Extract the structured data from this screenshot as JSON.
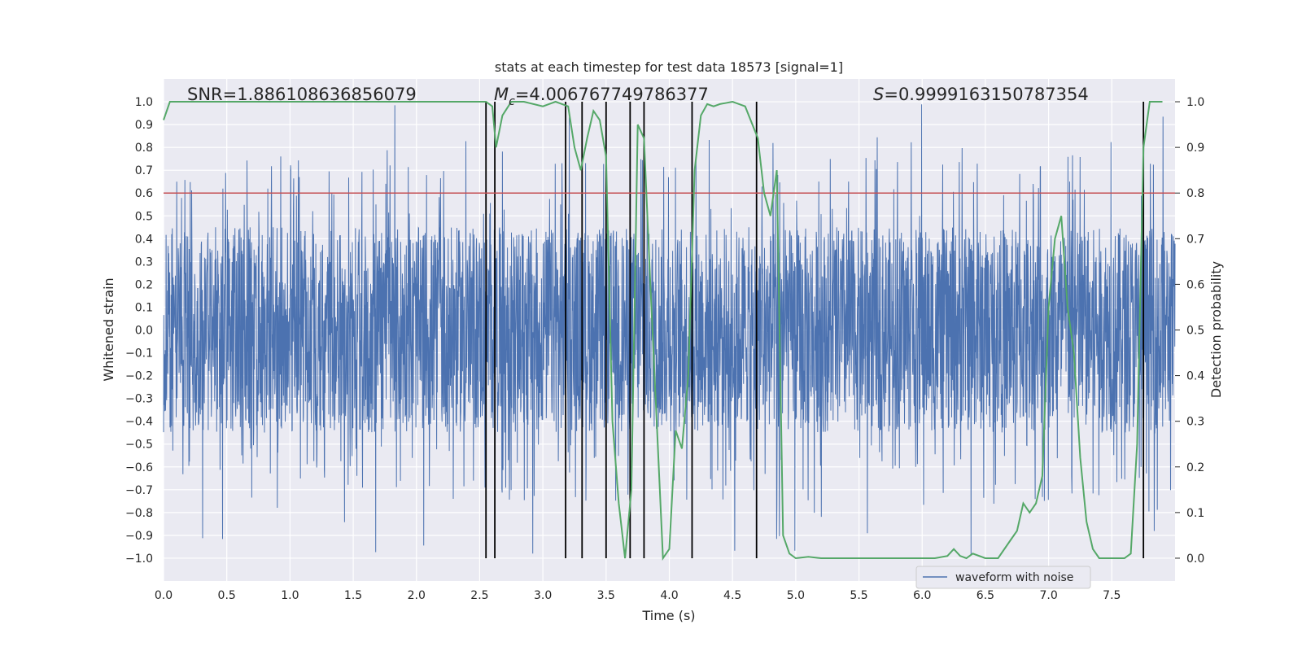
{
  "chart_data": {
    "type": "line",
    "title": "stats at each timestep for test data 18573 [signal=1]",
    "xlabel": "Time (s)",
    "ylabel": "Whitened strain",
    "y2label": "Detection probability",
    "xlim": [
      0.0,
      8.0
    ],
    "ylim": [
      -1.1,
      1.1
    ],
    "y2lim": [
      -0.05,
      1.05
    ],
    "xticks": [
      "0.0",
      "0.5",
      "1.0",
      "1.5",
      "2.0",
      "2.5",
      "3.0",
      "3.5",
      "4.0",
      "4.5",
      "5.0",
      "5.5",
      "6.0",
      "6.5",
      "7.0",
      "7.5"
    ],
    "yticks": [
      "1.0",
      "0.9",
      "0.8",
      "0.7",
      "0.6",
      "0.5",
      "0.4",
      "0.3",
      "0.2",
      "0.1",
      "0.0",
      "−0.1",
      "−0.2",
      "−0.3",
      "−0.4",
      "−0.5",
      "−0.6",
      "−0.7",
      "−0.8",
      "−0.9",
      "−1.0"
    ],
    "y2ticks": [
      "1.0",
      "0.9",
      "0.8",
      "0.7",
      "0.6",
      "0.5",
      "0.4",
      "0.3",
      "0.2",
      "0.1",
      "0.0"
    ],
    "grid": true,
    "legend_position": "lower-right",
    "annotations": {
      "snr": "SNR=1.886108636856079",
      "mc_prefix": "M",
      "mc_sub": "c",
      "mc_value": "=4.006767749786377",
      "s_prefix": "S",
      "s_value": "=0.9999163150787354"
    },
    "series": [
      {
        "name": "waveform with noise",
        "kind": "noise-waveform",
        "color": "#4c72b0",
        "core_amplitude": 0.45,
        "peak_amplitude_max": 1.0,
        "note_values": "dense whitened strain samples spanning roughly -1.0 to 1.0"
      },
      {
        "kind": "probability",
        "axis": "y2",
        "color": "#55a868",
        "x": [
          0.0,
          0.05,
          0.1,
          0.2,
          0.5,
          1.0,
          1.5,
          2.0,
          2.5,
          2.55,
          2.6,
          2.63,
          2.68,
          2.75,
          2.85,
          3.0,
          3.1,
          3.2,
          3.25,
          3.3,
          3.35,
          3.4,
          3.45,
          3.5,
          3.55,
          3.6,
          3.65,
          3.7,
          3.75,
          3.8,
          3.85,
          3.9,
          3.95,
          4.0,
          4.05,
          4.1,
          4.15,
          4.2,
          4.25,
          4.3,
          4.35,
          4.4,
          4.5,
          4.6,
          4.7,
          4.75,
          4.8,
          4.85,
          4.9,
          4.95,
          5.0,
          5.1,
          5.2,
          5.3,
          5.5,
          5.7,
          5.9,
          6.1,
          6.2,
          6.25,
          6.3,
          6.35,
          6.4,
          6.5,
          6.6,
          6.7,
          6.75,
          6.8,
          6.85,
          6.9,
          6.95,
          7.0,
          7.05,
          7.1,
          7.15,
          7.2,
          7.25,
          7.3,
          7.35,
          7.4,
          7.45,
          7.5,
          7.6,
          7.65,
          7.7,
          7.75,
          7.8,
          7.85,
          7.9
        ],
        "y": [
          0.96,
          1.0,
          1.0,
          1.0,
          1.0,
          1.0,
          1.0,
          1.0,
          1.0,
          1.0,
          0.99,
          0.9,
          0.97,
          1.0,
          1.0,
          0.99,
          1.0,
          0.99,
          0.9,
          0.85,
          0.92,
          0.98,
          0.96,
          0.88,
          0.3,
          0.12,
          0.0,
          0.15,
          0.95,
          0.92,
          0.6,
          0.3,
          0.0,
          0.02,
          0.28,
          0.24,
          0.4,
          0.85,
          0.97,
          0.995,
          0.99,
          0.995,
          1.0,
          0.99,
          0.92,
          0.8,
          0.75,
          0.85,
          0.05,
          0.01,
          0.0,
          0.003,
          0.0,
          0.0,
          0.0,
          0.0,
          0.0,
          0.0,
          0.005,
          0.02,
          0.005,
          0.0,
          0.01,
          0.0,
          0.0,
          0.04,
          0.06,
          0.12,
          0.1,
          0.12,
          0.18,
          0.55,
          0.7,
          0.75,
          0.55,
          0.45,
          0.22,
          0.08,
          0.02,
          0.0,
          0.0,
          0.0,
          0.0,
          0.01,
          0.25,
          0.9,
          1.0,
          1.0,
          1.0
        ]
      }
    ],
    "threshold_line": {
      "color": "#c44e52",
      "y": 0.8
    },
    "vertical_markers_x": [
      2.55,
      2.62,
      3.18,
      3.31,
      3.5,
      3.69,
      3.8,
      4.18,
      4.69,
      7.75
    ],
    "colors": {
      "background": "#eaeaf2",
      "grid": "#ffffff",
      "markers": "#000000"
    }
  }
}
